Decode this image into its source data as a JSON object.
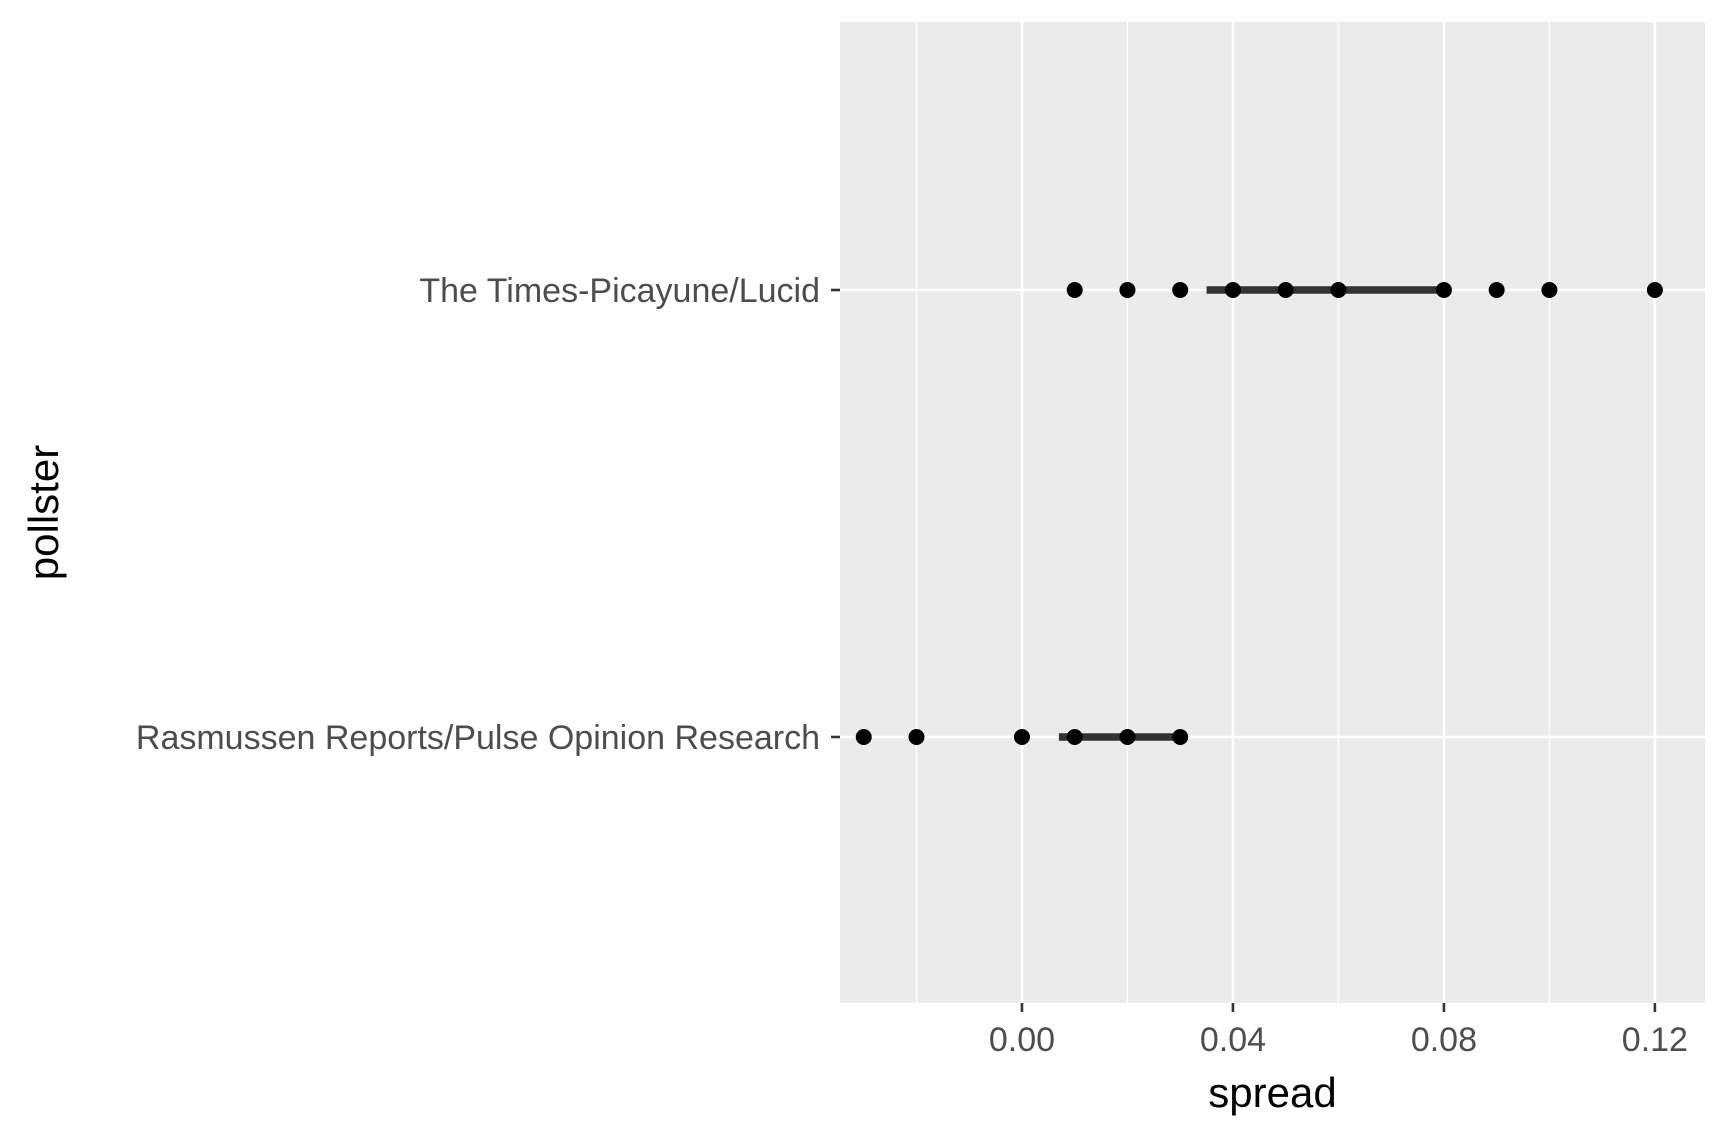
{
  "chart_data": {
    "type": "scatter",
    "xlabel": "spread",
    "ylabel": "pollster",
    "xlim": [
      -0.0345,
      0.1295
    ],
    "x_ticks": [
      0.0,
      0.04,
      0.08,
      0.12
    ],
    "x_tick_labels": [
      "0.00",
      "0.04",
      "0.08",
      "0.12"
    ],
    "grid": true,
    "categories": [
      "Rasmussen Reports/Pulse Opinion Research",
      "The Times-Picayune/Lucid"
    ],
    "series": [
      {
        "category": "The Times-Picayune/Lucid",
        "values": [
          0.01,
          0.02,
          0.03,
          0.04,
          0.05,
          0.06,
          0.08,
          0.09,
          0.1,
          0.12
        ],
        "interval": [
          0.035,
          0.08
        ]
      },
      {
        "category": "Rasmussen Reports/Pulse Opinion Research",
        "values": [
          -0.03,
          -0.02,
          0.0,
          0.01,
          0.02,
          0.03
        ],
        "interval": [
          0.007,
          0.03
        ]
      }
    ],
    "colors": {
      "panel": "#ebebeb",
      "grid": "#ffffff",
      "point": "#000000",
      "interval": "#333333",
      "tick": "#333333"
    }
  }
}
